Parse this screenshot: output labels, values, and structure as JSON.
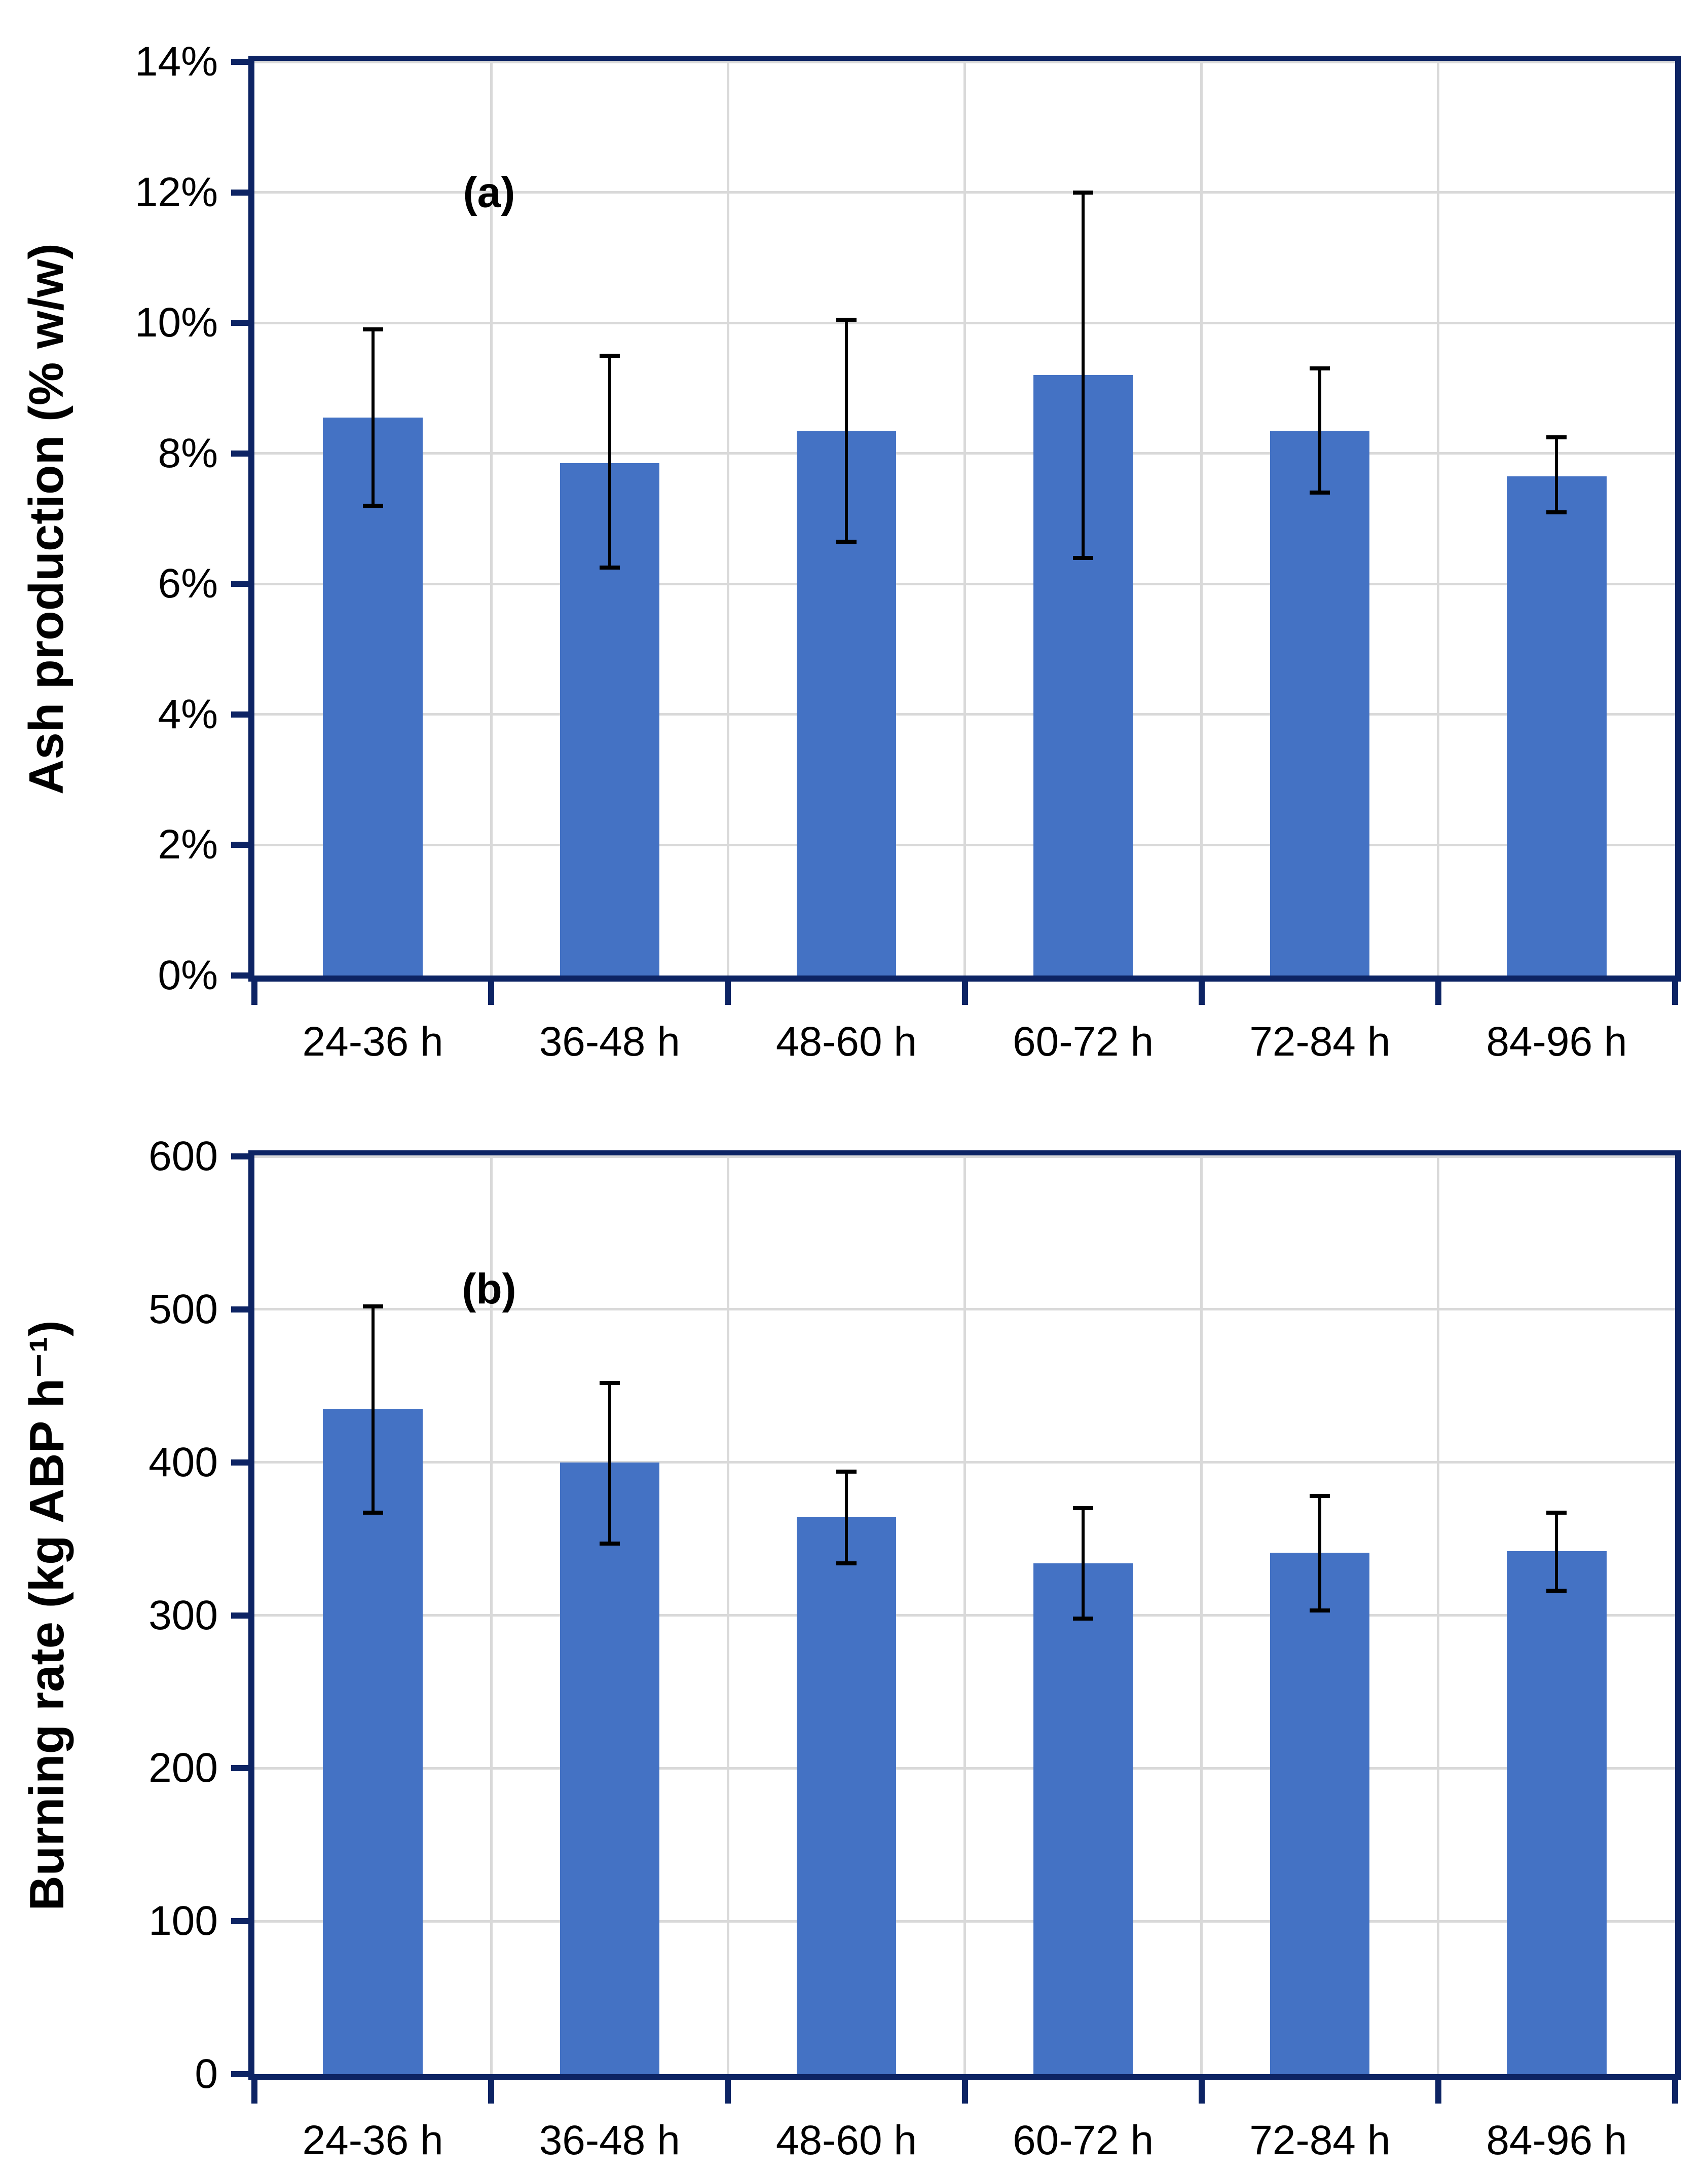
{
  "colors": {
    "bar_fill": "#4472C4",
    "axis_line": "#0d2464",
    "gridline": "#d9d9d9",
    "error_bar": "#000000",
    "text": "#000000"
  },
  "chart_data": [
    {
      "type": "bar",
      "panel_label": "(a)",
      "ylabel": "Ash production (% w/w)",
      "xlabel": "",
      "categories": [
        "24-36 h",
        "36-48 h",
        "48-60 h",
        "60-72 h",
        "72-84 h",
        "84-96 h"
      ],
      "values": [
        8.55,
        7.85,
        8.35,
        9.2,
        8.35,
        7.65
      ],
      "error_low": [
        7.2,
        6.25,
        6.65,
        6.4,
        7.4,
        7.1
      ],
      "error_high": [
        9.9,
        9.5,
        10.05,
        12.0,
        9.3,
        8.25
      ],
      "ylim": [
        0,
        14
      ],
      "ytick_step": 2,
      "ytick_labels": [
        "0%",
        "2%",
        "4%",
        "6%",
        "8%",
        "10%",
        "12%",
        "14%"
      ],
      "grid": true,
      "legend": "none"
    },
    {
      "type": "bar",
      "panel_label": "(b)",
      "ylabel": "Burning rate (kg ABP h⁻¹)",
      "xlabel": "",
      "categories": [
        "24-36 h",
        "36-48 h",
        "48-60 h",
        "60-72 h",
        "72-84 h",
        "84-96 h"
      ],
      "values": [
        435,
        400,
        364,
        334,
        341,
        342
      ],
      "error_low": [
        367,
        347,
        334,
        298,
        303,
        316
      ],
      "error_high": [
        502,
        452,
        394,
        370,
        378,
        367
      ],
      "ylim": [
        0,
        600
      ],
      "ytick_step": 100,
      "ytick_labels": [
        "0",
        "100",
        "200",
        "300",
        "400",
        "500",
        "600"
      ],
      "grid": true,
      "legend": "none"
    }
  ]
}
